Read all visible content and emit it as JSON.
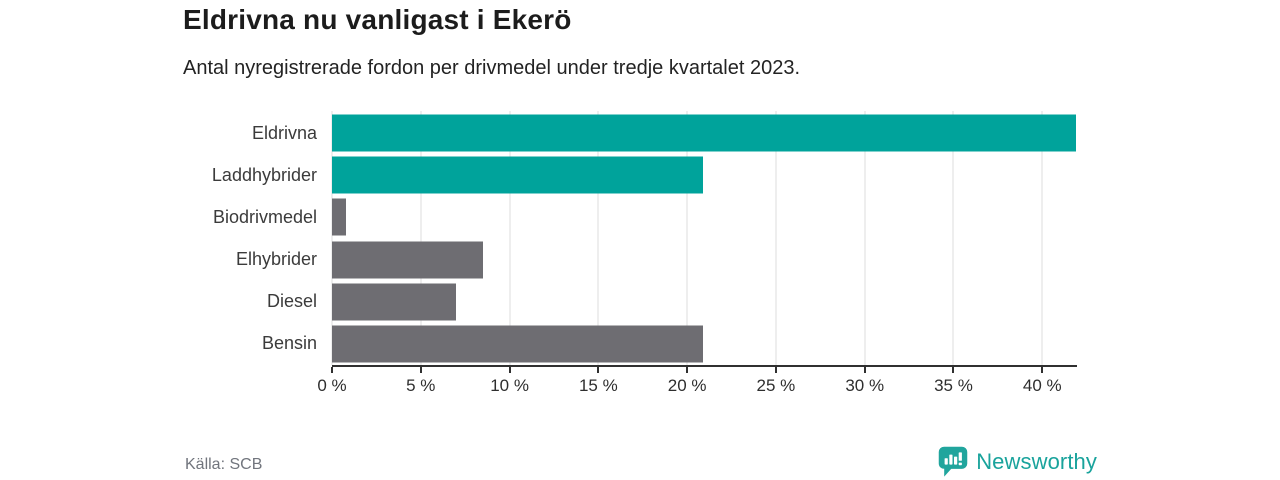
{
  "header": {
    "title": "Eldrivna nu vanligast i Ekerö",
    "subtitle": "Antal nyregistrerade fordon per drivmedel under tredje kvartalet 2023."
  },
  "footer": {
    "source": "Källa: SCB",
    "brand": "Newsworthy",
    "logo_icon": "newsworthy-pin-bar-chart-icon"
  },
  "colors": {
    "accent_teal": "#00a39b",
    "bar_gray": "#6e6d72",
    "brand_teal": "#19a39c",
    "axis": "#303030",
    "grid": "#dcdcdc",
    "text_dark": "#1c1c1c",
    "text_muted": "#71757d"
  },
  "chart_data": {
    "type": "bar",
    "orientation": "horizontal",
    "title": "Eldrivna nu vanligast i Ekerö",
    "subtitle": "Antal nyregistrerade fordon per drivmedel under tredje kvartalet 2023.",
    "categories": [
      "Eldrivna",
      "Laddhybrider",
      "Biodrivmedel",
      "Elhybrider",
      "Diesel",
      "Bensin"
    ],
    "values": [
      41.9,
      20.9,
      0.8,
      8.5,
      7.0,
      20.9
    ],
    "bar_colors": [
      "#00a39b",
      "#00a39b",
      "#6e6d72",
      "#6e6d72",
      "#6e6d72",
      "#6e6d72"
    ],
    "unit": "%",
    "xlabel": "",
    "ylabel": "",
    "xlim": [
      0,
      41.9
    ],
    "x_ticks": [
      0,
      5,
      10,
      15,
      20,
      25,
      30,
      35,
      40
    ],
    "x_tick_labels": [
      "0 %",
      "5 %",
      "10 %",
      "15 %",
      "20 %",
      "25 %",
      "30 %",
      "35 %",
      "40 %"
    ],
    "grid": "vertical",
    "legend": "none"
  }
}
